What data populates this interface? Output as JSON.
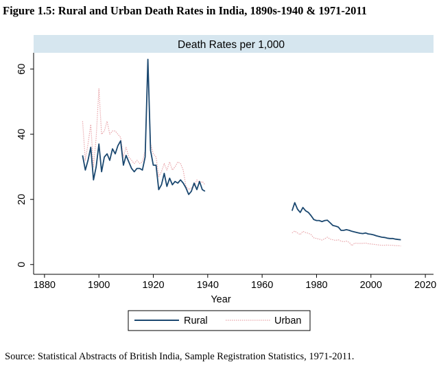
{
  "figure_title": "Figure 1.5: Rural and Urban Death Rates in India, 1890s-1940 & 1971-2011",
  "source_note": "Source: Statistical Abstracts of British India, Sample Registration Statistics, 1971-2011.",
  "colors": {
    "rural": "#1a476f",
    "urban": "#e8a3a8",
    "header_band": "#d6e6ef",
    "axis": "#000000"
  },
  "chart_data": {
    "type": "line",
    "title": "Death Rates per 1,000",
    "xlabel": "Year",
    "ylabel": "",
    "xlim": [
      1876,
      2023
    ],
    "ylim": [
      -3,
      65
    ],
    "xticks": [
      1880,
      1900,
      1920,
      1940,
      1960,
      1980,
      2000,
      2020
    ],
    "yticks": [
      0,
      20,
      40,
      60
    ],
    "grid": false,
    "legend_position": "bottom",
    "series": [
      {
        "name": "Rural",
        "style": "solid",
        "segments": [
          [
            [
              1894,
              33.5
            ],
            [
              1895,
              29
            ],
            [
              1896,
              32
            ],
            [
              1897,
              36
            ],
            [
              1898,
              26
            ],
            [
              1899,
              30
            ],
            [
              1900,
              37
            ],
            [
              1901,
              28.5
            ],
            [
              1902,
              33
            ],
            [
              1903,
              34
            ],
            [
              1904,
              32
            ],
            [
              1905,
              35.5
            ],
            [
              1906,
              34
            ],
            [
              1907,
              36.5
            ],
            [
              1908,
              38
            ],
            [
              1909,
              30.5
            ],
            [
              1910,
              33.5
            ],
            [
              1911,
              31.5
            ],
            [
              1912,
              29.5
            ],
            [
              1913,
              28.5
            ],
            [
              1914,
              29.5
            ],
            [
              1915,
              29.5
            ],
            [
              1916,
              29
            ],
            [
              1917,
              33
            ],
            [
              1918,
              63
            ],
            [
              1919,
              35
            ],
            [
              1920,
              30.5
            ],
            [
              1921,
              30.5
            ],
            [
              1922,
              23
            ],
            [
              1923,
              24.5
            ],
            [
              1924,
              28
            ],
            [
              1925,
              24
            ],
            [
              1926,
              26.5
            ],
            [
              1927,
              24.5
            ],
            [
              1928,
              25.5
            ],
            [
              1929,
              25
            ],
            [
              1930,
              26
            ],
            [
              1931,
              25
            ],
            [
              1932,
              23.5
            ],
            [
              1933,
              21.5
            ],
            [
              1934,
              22.5
            ],
            [
              1935,
              25
            ],
            [
              1936,
              23
            ],
            [
              1937,
              25.5
            ],
            [
              1938,
              23
            ],
            [
              1939,
              22.5
            ]
          ],
          [
            [
              1971,
              16.5
            ],
            [
              1972,
              19
            ],
            [
              1973,
              17
            ],
            [
              1974,
              16
            ],
            [
              1975,
              17.5
            ],
            [
              1976,
              16.5
            ],
            [
              1977,
              16
            ],
            [
              1978,
              15
            ],
            [
              1979,
              13.8
            ],
            [
              1980,
              13.5
            ],
            [
              1981,
              13.5
            ],
            [
              1982,
              13.2
            ],
            [
              1983,
              13.5
            ],
            [
              1984,
              13.6
            ],
            [
              1985,
              12.8
            ],
            [
              1986,
              12
            ],
            [
              1987,
              11.8
            ],
            [
              1988,
              11.5
            ],
            [
              1989,
              10.5
            ],
            [
              1990,
              10.5
            ],
            [
              1991,
              10.7
            ],
            [
              1992,
              10.5
            ],
            [
              1993,
              10.2
            ],
            [
              1994,
              10
            ],
            [
              1995,
              9.8
            ],
            [
              1996,
              9.6
            ],
            [
              1997,
              9.5
            ],
            [
              1998,
              9.7
            ],
            [
              1999,
              9.4
            ],
            [
              2000,
              9.3
            ],
            [
              2001,
              9.1
            ],
            [
              2002,
              8.8
            ],
            [
              2003,
              8.6
            ],
            [
              2004,
              8.4
            ],
            [
              2005,
              8.3
            ],
            [
              2006,
              8.1
            ],
            [
              2007,
              8
            ],
            [
              2008,
              8
            ],
            [
              2009,
              7.8
            ],
            [
              2010,
              7.7
            ],
            [
              2011,
              7.6
            ]
          ]
        ]
      },
      {
        "name": "Urban",
        "style": "dotted",
        "segments": [
          [
            [
              1894,
              44
            ],
            [
              1895,
              32
            ],
            [
              1896,
              37
            ],
            [
              1897,
              43
            ],
            [
              1898,
              30
            ],
            [
              1899,
              39
            ],
            [
              1900,
              54
            ],
            [
              1901,
              40
            ],
            [
              1902,
              41
            ],
            [
              1903,
              44
            ],
            [
              1904,
              40
            ],
            [
              1905,
              41
            ],
            [
              1906,
              41
            ],
            [
              1907,
              40
            ],
            [
              1908,
              39
            ],
            [
              1909,
              33
            ],
            [
              1910,
              36
            ],
            [
              1911,
              33
            ],
            [
              1912,
              32
            ],
            [
              1913,
              31
            ],
            [
              1914,
              32
            ],
            [
              1915,
              31
            ],
            [
              1916,
              31.5
            ],
            [
              1917,
              35
            ],
            [
              1918,
              60
            ],
            [
              1919,
              37
            ],
            [
              1920,
              34
            ],
            [
              1921,
              33
            ],
            [
              1922,
              27
            ],
            [
              1923,
              28.5
            ],
            [
              1924,
              31
            ],
            [
              1925,
              29
            ],
            [
              1926,
              31.5
            ],
            [
              1927,
              29
            ],
            [
              1928,
              30
            ],
            [
              1929,
              31.5
            ],
            [
              1930,
              31
            ],
            [
              1931,
              29
            ],
            [
              1932,
              24
            ],
            [
              1933,
              23
            ],
            [
              1934,
              23.5
            ],
            [
              1935,
              24
            ],
            [
              1936,
              26
            ],
            [
              1937,
              25
            ],
            [
              1938,
              25.5
            ],
            [
              1939,
              24.5
            ]
          ],
          [
            [
              1971,
              9.7
            ],
            [
              1972,
              10.3
            ],
            [
              1973,
              9.7
            ],
            [
              1974,
              9.2
            ],
            [
              1975,
              10.2
            ],
            [
              1976,
              9.8
            ],
            [
              1977,
              9.6
            ],
            [
              1978,
              9.2
            ],
            [
              1979,
              8.2
            ],
            [
              1980,
              8
            ],
            [
              1981,
              7.8
            ],
            [
              1982,
              7.5
            ],
            [
              1983,
              7.9
            ],
            [
              1984,
              8.4
            ],
            [
              1985,
              7.8
            ],
            [
              1986,
              7.6
            ],
            [
              1987,
              7.4
            ],
            [
              1988,
              7.6
            ],
            [
              1989,
              7.2
            ],
            [
              1990,
              7
            ],
            [
              1991,
              7.2
            ],
            [
              1992,
              6.8
            ],
            [
              1993,
              5.8
            ],
            [
              1994,
              6.6
            ],
            [
              1995,
              6.5
            ],
            [
              1996,
              6.5
            ],
            [
              1997,
              6.5
            ],
            [
              1998,
              6.6
            ],
            [
              1999,
              6.4
            ],
            [
              2000,
              6.3
            ],
            [
              2001,
              6.2
            ],
            [
              2002,
              6.1
            ],
            [
              2003,
              6
            ],
            [
              2004,
              5.9
            ],
            [
              2005,
              5.9
            ],
            [
              2006,
              6
            ],
            [
              2007,
              5.9
            ],
            [
              2008,
              5.9
            ],
            [
              2009,
              5.8
            ],
            [
              2010,
              5.8
            ],
            [
              2011,
              5.7
            ]
          ]
        ]
      }
    ]
  }
}
